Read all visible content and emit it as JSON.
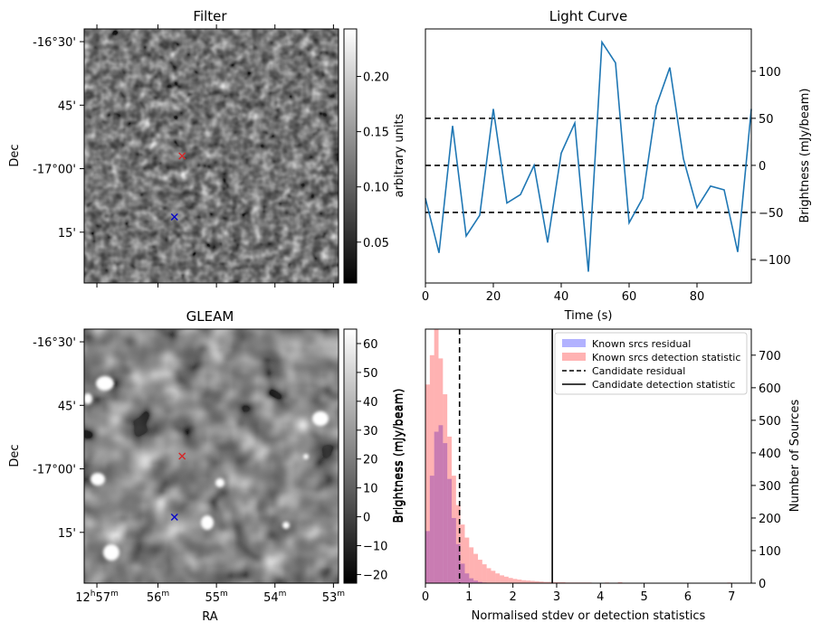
{
  "panels": {
    "filter": {
      "title": "Filter",
      "ylabel": "Dec",
      "dec_ticks": [
        "-16°30'",
        "45'",
        "-17°00'",
        "15'"
      ],
      "colorbar": {
        "label": "arbitrary units",
        "ticks": [
          "0.20",
          "0.15",
          "0.10",
          "0.05"
        ],
        "range": [
          0.013,
          0.243
        ],
        "tick_values": [
          0.2,
          0.15,
          0.1,
          0.05
        ]
      },
      "markers": [
        {
          "kind": "x",
          "color": "#d62728",
          "x": 0.385,
          "y": 0.5
        },
        {
          "kind": "x",
          "color": "#0000cc",
          "x": 0.355,
          "y": 0.74
        }
      ]
    },
    "gleam": {
      "title": "GLEAM",
      "ylabel": "Dec",
      "xlabel": "RA",
      "dec_ticks": [
        "-16°30'",
        "45'",
        "-17°00'",
        "15'"
      ],
      "ra_ticks": [
        {
          "h": "12",
          "hu": "h",
          "m": "57",
          "mu": "m"
        },
        {
          "h": "",
          "hu": "",
          "m": "56",
          "mu": "m"
        },
        {
          "h": "",
          "hu": "",
          "m": "55",
          "mu": "m"
        },
        {
          "h": "",
          "hu": "",
          "m": "54",
          "mu": "m"
        },
        {
          "h": "",
          "hu": "",
          "m": "53",
          "mu": "m"
        }
      ],
      "colorbar": {
        "label": "Brightness (mJy/beam)",
        "ticks": [
          "60",
          "50",
          "40",
          "30",
          "20",
          "10",
          "0",
          "−10",
          "−20"
        ],
        "range": [
          -23,
          65
        ],
        "tick_values": [
          60,
          50,
          40,
          30,
          20,
          10,
          0,
          -10,
          -20
        ]
      },
      "markers": [
        {
          "kind": "x",
          "color": "#d62728",
          "x": 0.385,
          "y": 0.5
        },
        {
          "kind": "x",
          "color": "#0000cc",
          "x": 0.355,
          "y": 0.74
        }
      ]
    }
  },
  "chart_data": [
    {
      "type": "line",
      "title": "Light Curve",
      "xlabel": "Time (s)",
      "ylabel": "Brightness (mJy/beam)",
      "xlim": [
        0,
        96
      ],
      "ylim": [
        -125,
        145
      ],
      "x_ticks": [
        0,
        20,
        40,
        60,
        80
      ],
      "y_ticks": [
        100,
        50,
        0,
        -50,
        -100
      ],
      "x_tick_labels": [
        "0",
        "20",
        "40",
        "60",
        "80"
      ],
      "y_tick_labels": [
        "100",
        "50",
        "0",
        "−50",
        "−100"
      ],
      "series": [
        {
          "color": "#1f77b4",
          "x": [
            0,
            4,
            8,
            12,
            16,
            20,
            24,
            28,
            32,
            36,
            40,
            44,
            48,
            52,
            56,
            60,
            64,
            68,
            72,
            76,
            80,
            84,
            88,
            92,
            96
          ],
          "y": [
            -35,
            -93,
            42,
            -75,
            -53,
            60,
            -40,
            -31,
            0,
            -82,
            13,
            45,
            -113,
            131,
            109,
            -61,
            -35,
            63,
            104,
            7,
            -45,
            -22,
            -26,
            -92,
            60
          ]
        }
      ],
      "hlines": [
        50,
        0,
        -50
      ],
      "grid": false
    },
    {
      "type": "histogram",
      "xlabel": "Normalised stdev or detection statistics",
      "ylabel_left": "Brightness (mJy/beam)",
      "ylabel_right": "Number of Sources",
      "xlim": [
        0,
        7.45
      ],
      "ylim": [
        0,
        780
      ],
      "x_ticks": [
        0,
        1,
        2,
        3,
        4,
        5,
        6,
        7
      ],
      "y_ticks": [
        0,
        100,
        200,
        300,
        400,
        500,
        600,
        700
      ],
      "x_tick_labels": [
        "0",
        "1",
        "2",
        "3",
        "4",
        "5",
        "6",
        "7"
      ],
      "y_tick_labels": [
        "0",
        "100",
        "200",
        "300",
        "400",
        "500",
        "600",
        "700"
      ],
      "bin_width": 0.1,
      "series": [
        {
          "name": "Known srcs residual",
          "color": "#0000ff",
          "opacity": 0.3,
          "bin_start": 0.0,
          "counts": [
            160,
            330,
            465,
            485,
            430,
            320,
            200,
            120,
            60,
            30,
            15,
            8,
            4,
            2
          ]
        },
        {
          "name": "Known srcs detection statistic",
          "color": "#ff0000",
          "opacity": 0.3,
          "bin_start": 0.0,
          "counts": [
            610,
            700,
            780,
            690,
            580,
            450,
            330,
            240,
            180,
            140,
            110,
            90,
            72,
            58,
            46,
            38,
            30,
            24,
            20,
            16,
            13,
            11,
            9,
            8,
            7,
            6,
            5,
            4,
            4,
            3,
            3,
            3,
            2,
            2,
            2,
            2,
            2,
            2,
            1,
            1,
            1,
            2,
            1,
            1,
            3,
            1,
            1,
            1,
            0,
            1,
            1,
            0,
            1,
            0,
            1,
            0,
            0,
            1,
            0,
            0,
            0,
            0,
            0,
            0,
            0,
            0,
            0,
            0,
            0,
            2
          ]
        }
      ],
      "vlines": [
        {
          "name": "Candidate residual",
          "x": 0.78,
          "dash": true
        },
        {
          "name": "Candidate detection statistic",
          "x": 2.9,
          "dash": false
        }
      ],
      "legend_position": "top-right"
    }
  ]
}
